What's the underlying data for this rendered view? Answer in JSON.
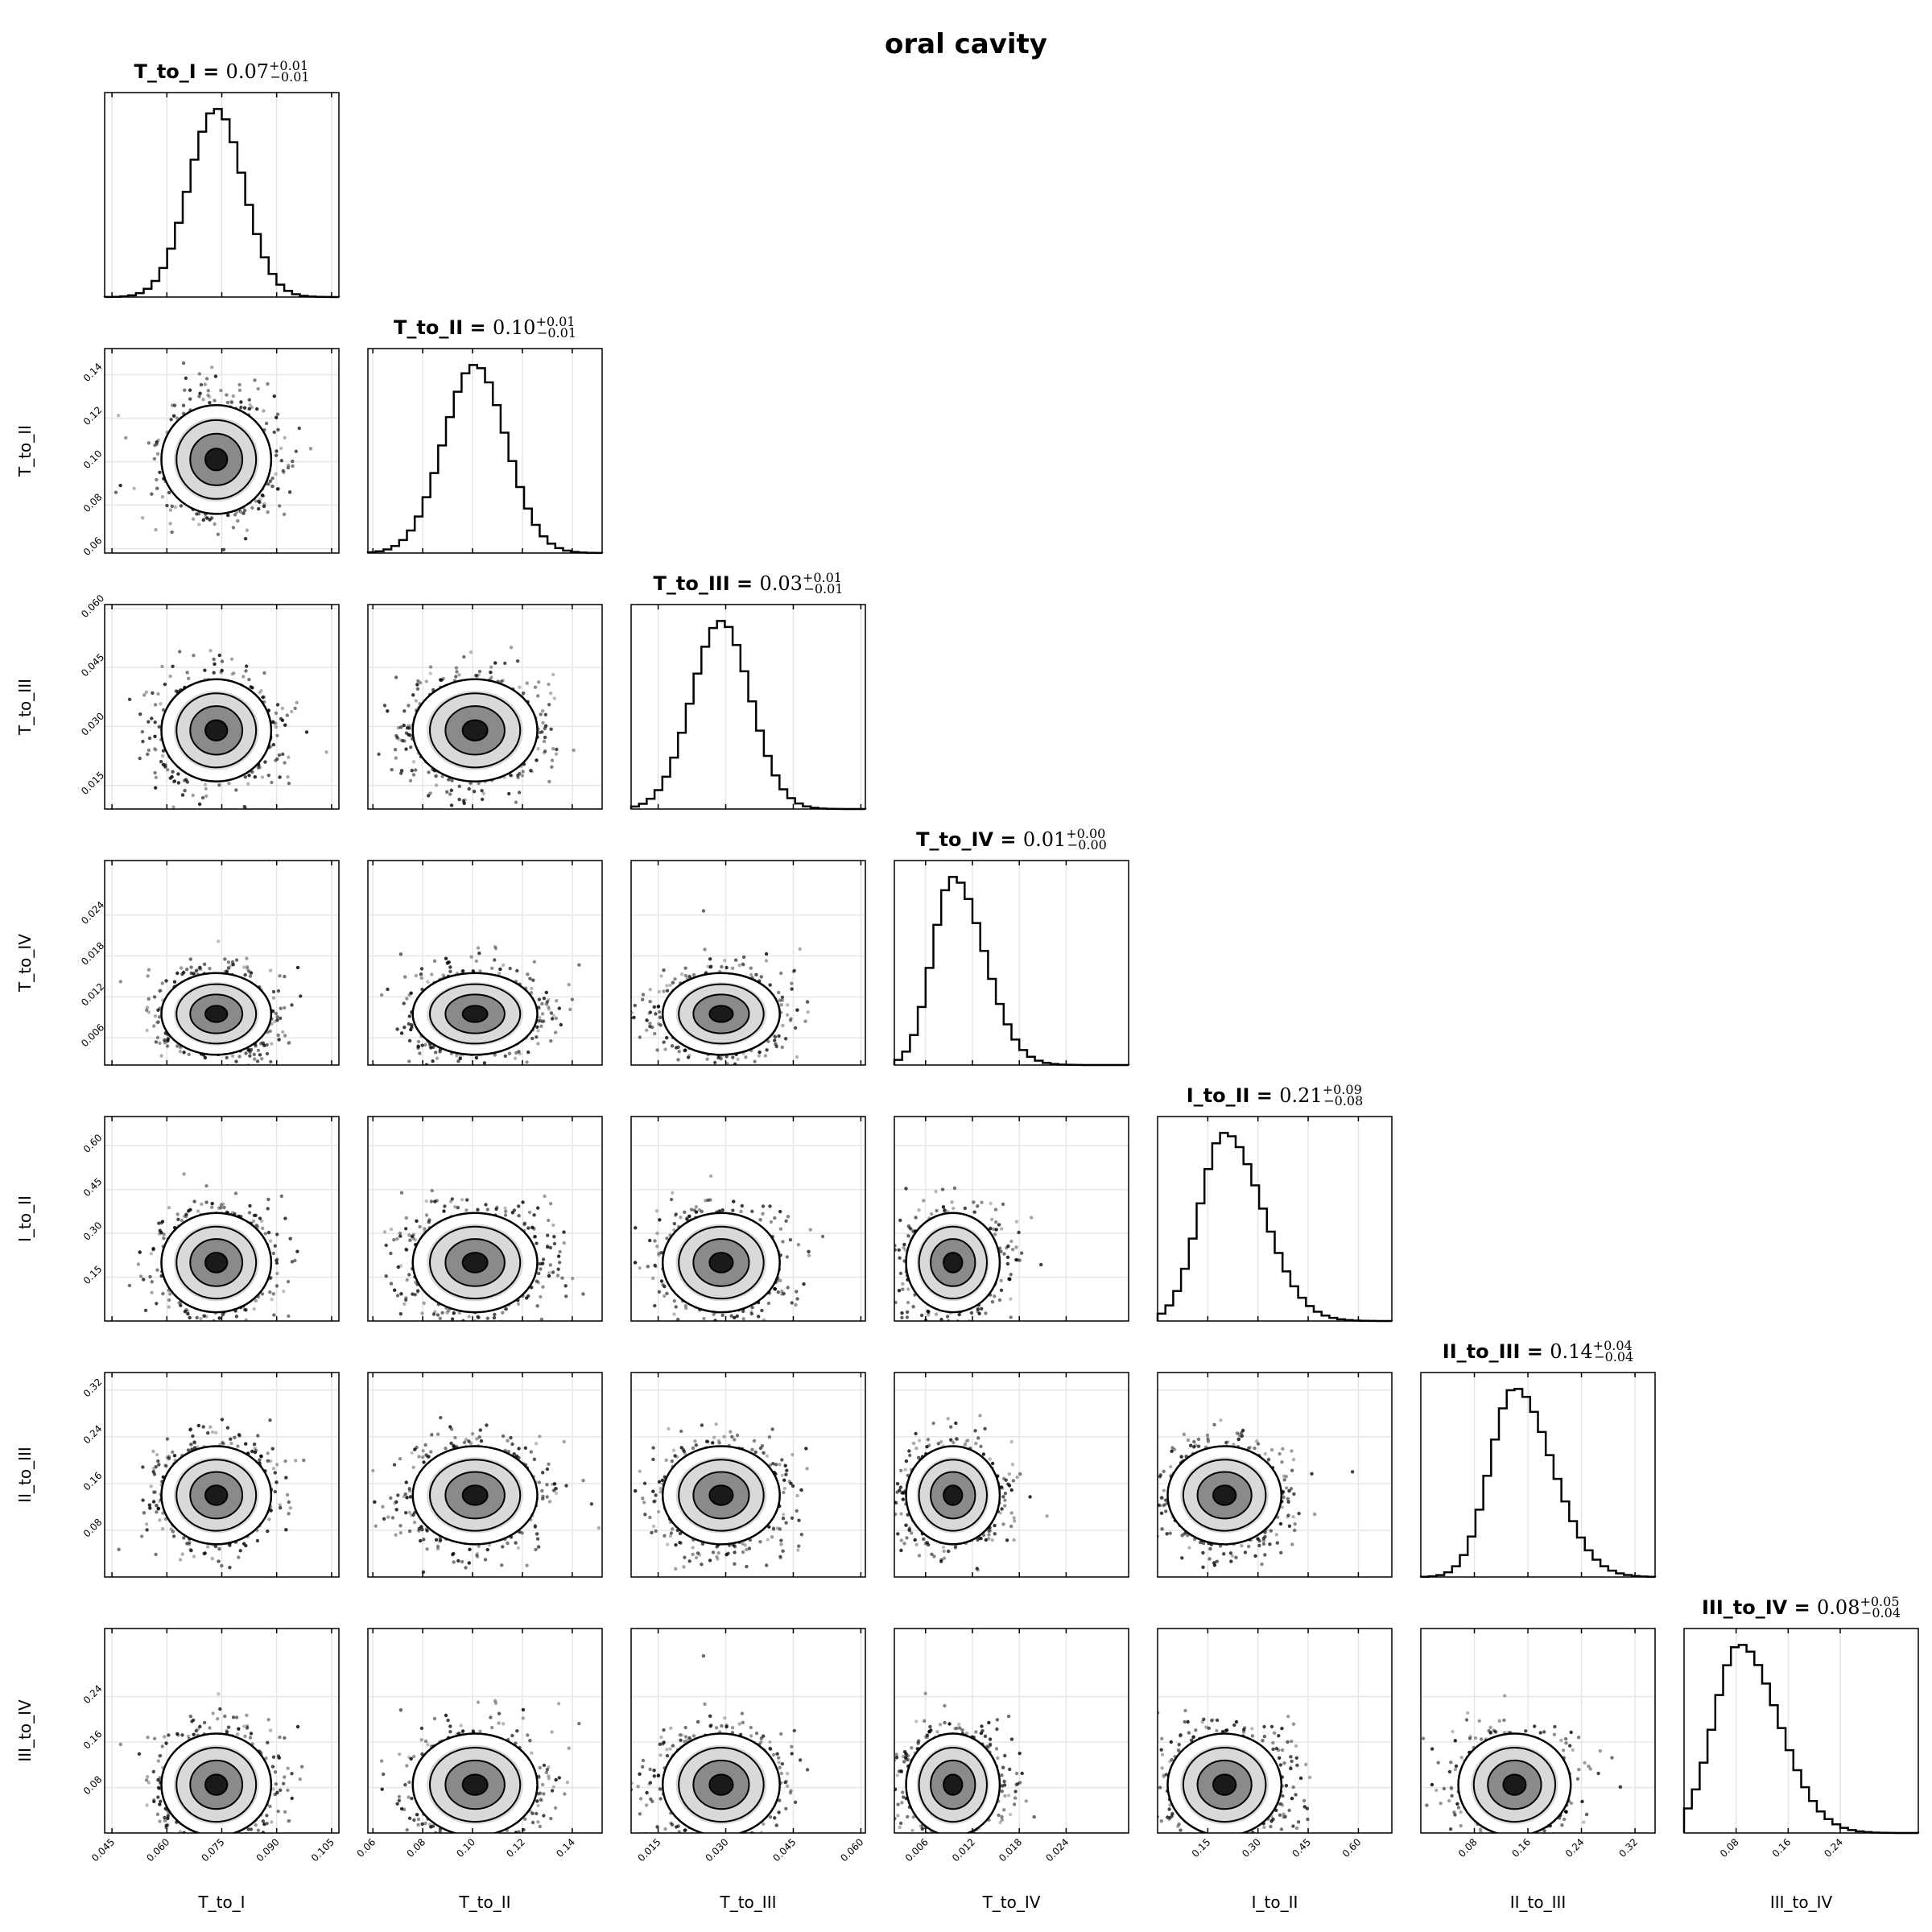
{
  "figure": {
    "title": "oral cavity"
  },
  "chart_data": {
    "type": "corner",
    "title": "oral cavity",
    "parameters": [
      {
        "name": "T_to_I",
        "median": "0.07",
        "plus": "+0.01",
        "minus": "−0.01",
        "range": [
          0.043,
          0.107
        ],
        "mean": 0.0735,
        "sd": 0.0075,
        "ticks": [
          "0.045",
          "0.060",
          "0.075",
          "0.090",
          "0.105"
        ],
        "tick_values": [
          0.045,
          0.06,
          0.075,
          0.09,
          0.105
        ]
      },
      {
        "name": "T_to_II",
        "median": "0.10",
        "plus": "+0.01",
        "minus": "−0.01",
        "range": [
          0.058,
          0.152
        ],
        "mean": 0.101,
        "sd": 0.0125,
        "ticks": [
          "0.06",
          "0.08",
          "0.10",
          "0.12",
          "0.14"
        ],
        "tick_values": [
          0.06,
          0.08,
          0.1,
          0.12,
          0.14
        ]
      },
      {
        "name": "T_to_III",
        "median": "0.03",
        "plus": "+0.01",
        "minus": "−0.01",
        "range": [
          0.009,
          0.061
        ],
        "mean": 0.029,
        "sd": 0.0065,
        "ticks": [
          "0.015",
          "0.030",
          "0.045",
          "0.060"
        ],
        "tick_values": [
          0.015,
          0.03,
          0.045,
          0.06
        ]
      },
      {
        "name": "T_to_IV",
        "median": "0.01",
        "plus": "+0.00",
        "minus": "−0.00",
        "range": [
          0.002,
          0.032
        ],
        "mean": 0.0095,
        "sd": 0.003,
        "ticks": [
          "0.006",
          "0.012",
          "0.018",
          "0.024"
        ],
        "tick_values": [
          0.006,
          0.012,
          0.018,
          0.024
        ]
      },
      {
        "name": "I_to_II",
        "median": "0.21",
        "plus": "+0.09",
        "minus": "−0.08",
        "range": [
          0.0,
          0.7
        ],
        "mean": 0.2,
        "sd": 0.085,
        "ticks": [
          "0.15",
          "0.30",
          "0.45",
          "0.60"
        ],
        "tick_values": [
          0.15,
          0.3,
          0.45,
          0.6
        ]
      },
      {
        "name": "II_to_III",
        "median": "0.14",
        "plus": "+0.04",
        "minus": "−0.04",
        "range": [
          0.0,
          0.35
        ],
        "mean": 0.14,
        "sd": 0.042,
        "ticks": [
          "0.08",
          "0.16",
          "0.24",
          "0.32"
        ],
        "tick_values": [
          0.08,
          0.16,
          0.24,
          0.32
        ]
      },
      {
        "name": "III_to_IV",
        "median": "0.08",
        "plus": "+0.05",
        "minus": "−0.04",
        "range": [
          0.0,
          0.36
        ],
        "mean": 0.085,
        "sd": 0.045,
        "ticks": [
          "0.08",
          "0.16",
          "0.24"
        ],
        "tick_values": [
          0.08,
          0.16,
          0.24
        ]
      }
    ],
    "grid": true
  }
}
